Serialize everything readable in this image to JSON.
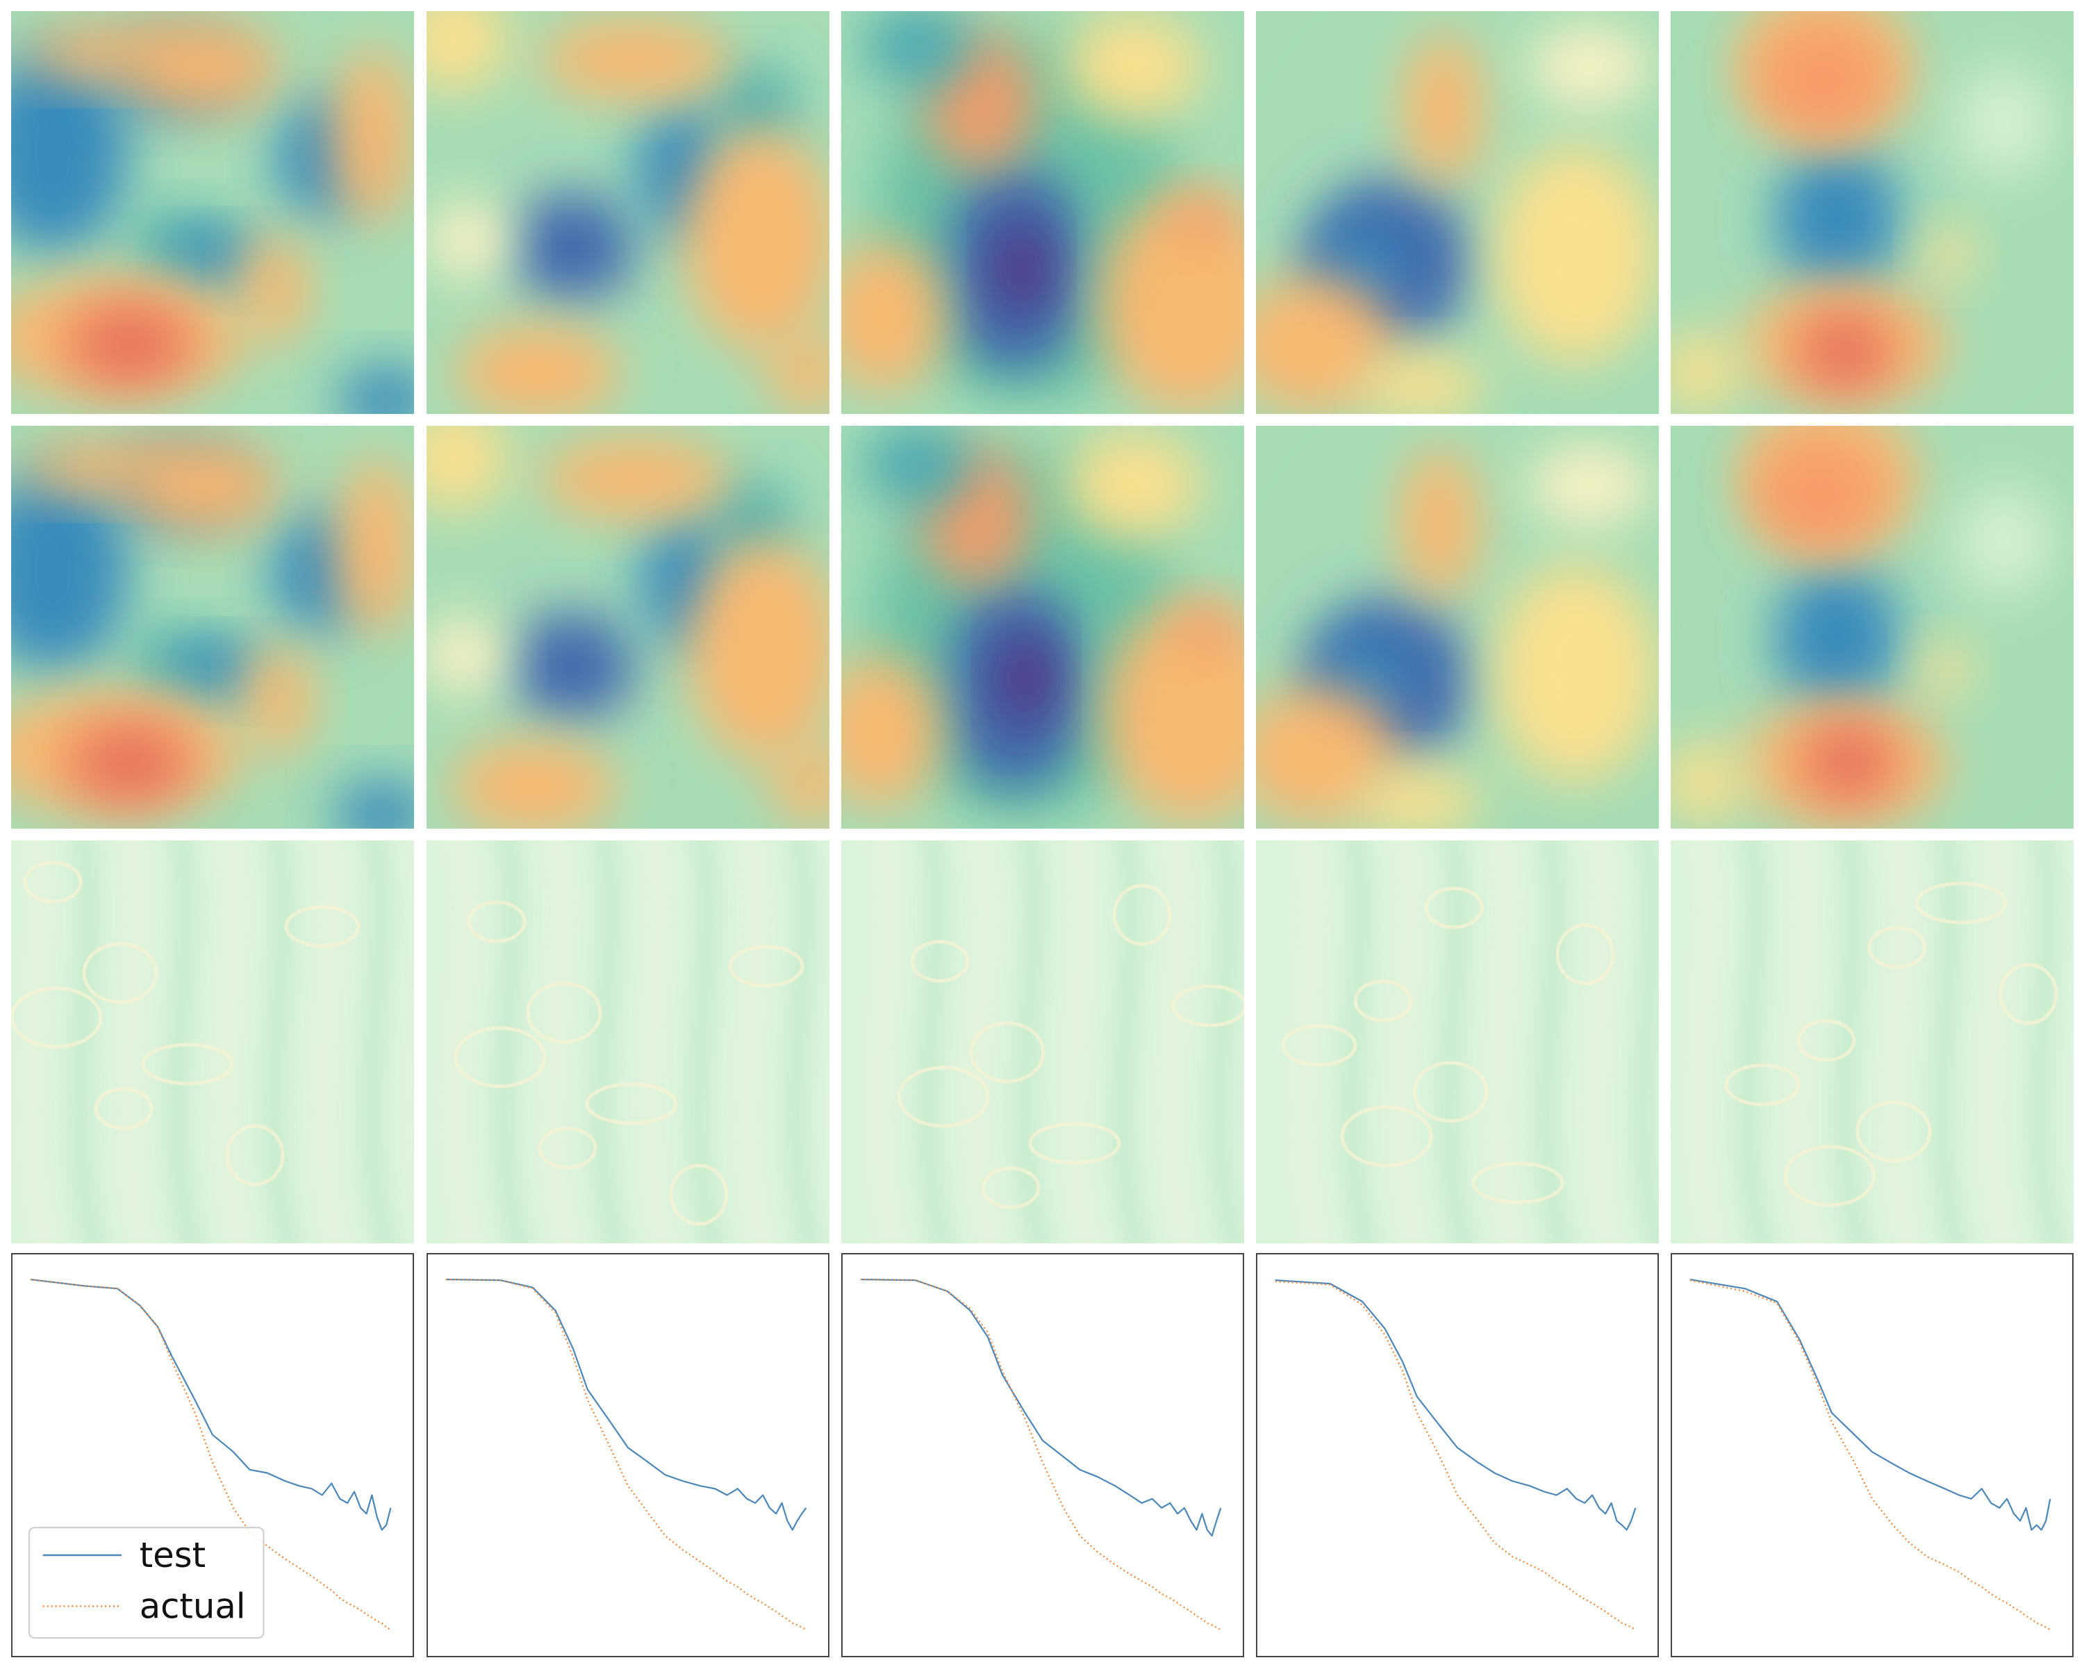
{
  "figure": {
    "rows": [
      "prediction-field",
      "ground-truth-field",
      "error-field",
      "energy-spectrum"
    ],
    "columns": 5,
    "colormap": "Spectral",
    "colors": {
      "test": "#4a86b8",
      "actual": "#f0883b",
      "frame": "#444444"
    }
  },
  "legend": {
    "placement": "lower-left",
    "entries": [
      {
        "label": "test",
        "style": "solid",
        "color": "#4a86b8"
      },
      {
        "label": "actual",
        "style": "dotted",
        "color": "#f0883b"
      }
    ]
  },
  "chart_data": {
    "type": "line",
    "xscale": "log",
    "yscale": "log",
    "axes_ticks": false,
    "xlim": [
      1,
      100
    ],
    "ylim": [
      1e-05,
      1
    ],
    "series_names": [
      "test",
      "actual"
    ],
    "panels": [
      {
        "test": [
          [
            1,
            0.8
          ],
          [
            2,
            0.65
          ],
          [
            3,
            0.6
          ],
          [
            4,
            0.35
          ],
          [
            5,
            0.18
          ],
          [
            6,
            0.07
          ],
          [
            8,
            0.018
          ],
          [
            10,
            0.006
          ],
          [
            13,
            0.0035
          ],
          [
            16,
            0.002
          ],
          [
            20,
            0.0018
          ],
          [
            25,
            0.0014
          ],
          [
            30,
            0.0012
          ],
          [
            35,
            0.0011
          ],
          [
            40,
            0.0009
          ],
          [
            45,
            0.0013
          ],
          [
            50,
            0.0008
          ],
          [
            55,
            0.0007
          ],
          [
            60,
            0.001
          ],
          [
            65,
            0.0006
          ],
          [
            70,
            0.0005
          ],
          [
            75,
            0.0009
          ],
          [
            80,
            0.00045
          ],
          [
            85,
            0.0003
          ],
          [
            90,
            0.00035
          ],
          [
            95,
            0.0006
          ]
        ],
        "actual": [
          [
            1,
            0.8
          ],
          [
            2,
            0.65
          ],
          [
            3,
            0.6
          ],
          [
            4,
            0.35
          ],
          [
            5,
            0.18
          ],
          [
            6,
            0.06
          ],
          [
            8,
            0.012
          ],
          [
            10,
            0.0025
          ],
          [
            13,
            0.0006
          ],
          [
            16,
            0.00028
          ],
          [
            20,
            0.00018
          ],
          [
            25,
            0.00012
          ],
          [
            30,
            9e-05
          ],
          [
            35,
            7e-05
          ],
          [
            40,
            5.5e-05
          ],
          [
            45,
            4.5e-05
          ],
          [
            50,
            3.5e-05
          ],
          [
            55,
            3e-05
          ],
          [
            60,
            2.7e-05
          ],
          [
            65,
            2.4e-05
          ],
          [
            70,
            2.1e-05
          ],
          [
            75,
            1.9e-05
          ],
          [
            80,
            1.7e-05
          ],
          [
            85,
            1.6e-05
          ],
          [
            90,
            1.4e-05
          ],
          [
            95,
            1.3e-05
          ]
        ]
      },
      {
        "test": [
          [
            1,
            0.8
          ],
          [
            2,
            0.78
          ],
          [
            3,
            0.62
          ],
          [
            4,
            0.3
          ],
          [
            5,
            0.09
          ],
          [
            6,
            0.025
          ],
          [
            8,
            0.009
          ],
          [
            10,
            0.004
          ],
          [
            13,
            0.0025
          ],
          [
            16,
            0.0017
          ],
          [
            20,
            0.0014
          ],
          [
            25,
            0.0012
          ],
          [
            30,
            0.0011
          ],
          [
            35,
            0.0009
          ],
          [
            40,
            0.0011
          ],
          [
            45,
            0.0008
          ],
          [
            50,
            0.0007
          ],
          [
            55,
            0.0009
          ],
          [
            60,
            0.0006
          ],
          [
            65,
            0.0005
          ],
          [
            70,
            0.0007
          ],
          [
            75,
            0.0004
          ],
          [
            80,
            0.0003
          ],
          [
            85,
            0.0004
          ],
          [
            90,
            0.0005
          ],
          [
            95,
            0.0006
          ]
        ],
        "actual": [
          [
            1,
            0.8
          ],
          [
            2,
            0.78
          ],
          [
            3,
            0.6
          ],
          [
            4,
            0.28
          ],
          [
            5,
            0.07
          ],
          [
            6,
            0.018
          ],
          [
            8,
            0.004
          ],
          [
            10,
            0.0012
          ],
          [
            13,
            0.0005
          ],
          [
            16,
            0.00025
          ],
          [
            20,
            0.00016
          ],
          [
            25,
            0.00011
          ],
          [
            30,
            8e-05
          ],
          [
            35,
            6e-05
          ],
          [
            40,
            5e-05
          ],
          [
            45,
            4e-05
          ],
          [
            50,
            3.4e-05
          ],
          [
            55,
            3e-05
          ],
          [
            60,
            2.6e-05
          ],
          [
            65,
            2.3e-05
          ],
          [
            70,
            2e-05
          ],
          [
            75,
            1.8e-05
          ],
          [
            80,
            1.6e-05
          ],
          [
            85,
            1.5e-05
          ],
          [
            90,
            1.4e-05
          ],
          [
            95,
            1.3e-05
          ]
        ]
      },
      {
        "test": [
          [
            1,
            0.8
          ],
          [
            2,
            0.78
          ],
          [
            3,
            0.55
          ],
          [
            4,
            0.3
          ],
          [
            5,
            0.13
          ],
          [
            6,
            0.04
          ],
          [
            8,
            0.012
          ],
          [
            10,
            0.005
          ],
          [
            13,
            0.003
          ],
          [
            16,
            0.002
          ],
          [
            20,
            0.0016
          ],
          [
            25,
            0.0012
          ],
          [
            30,
            0.0009
          ],
          [
            35,
            0.0007
          ],
          [
            40,
            0.0008
          ],
          [
            45,
            0.0006
          ],
          [
            50,
            0.0007
          ],
          [
            55,
            0.0005
          ],
          [
            60,
            0.0006
          ],
          [
            65,
            0.0004
          ],
          [
            70,
            0.0003
          ],
          [
            75,
            0.0005
          ],
          [
            80,
            0.0003
          ],
          [
            85,
            0.00025
          ],
          [
            90,
            0.0004
          ],
          [
            95,
            0.0006
          ]
        ],
        "actual": [
          [
            1,
            0.8
          ],
          [
            2,
            0.78
          ],
          [
            3,
            0.55
          ],
          [
            4,
            0.32
          ],
          [
            5,
            0.15
          ],
          [
            6,
            0.045
          ],
          [
            8,
            0.01
          ],
          [
            10,
            0.0025
          ],
          [
            13,
            0.0006
          ],
          [
            16,
            0.00025
          ],
          [
            20,
            0.00015
          ],
          [
            25,
            0.0001
          ],
          [
            30,
            7.5e-05
          ],
          [
            35,
            6e-05
          ],
          [
            40,
            5e-05
          ],
          [
            45,
            4e-05
          ],
          [
            50,
            3.5e-05
          ],
          [
            55,
            3e-05
          ],
          [
            60,
            2.6e-05
          ],
          [
            65,
            2.3e-05
          ],
          [
            70,
            2e-05
          ],
          [
            75,
            1.8e-05
          ],
          [
            80,
            1.6e-05
          ],
          [
            85,
            1.5e-05
          ],
          [
            90,
            1.4e-05
          ],
          [
            95,
            1.3e-05
          ]
        ]
      },
      {
        "test": [
          [
            1,
            0.78
          ],
          [
            2,
            0.7
          ],
          [
            3,
            0.4
          ],
          [
            4,
            0.17
          ],
          [
            5,
            0.06
          ],
          [
            6,
            0.02
          ],
          [
            8,
            0.008
          ],
          [
            10,
            0.004
          ],
          [
            13,
            0.0025
          ],
          [
            16,
            0.0018
          ],
          [
            20,
            0.0014
          ],
          [
            25,
            0.0012
          ],
          [
            30,
            0.001
          ],
          [
            35,
            0.0009
          ],
          [
            40,
            0.0011
          ],
          [
            45,
            0.0008
          ],
          [
            50,
            0.0007
          ],
          [
            55,
            0.0009
          ],
          [
            60,
            0.0006
          ],
          [
            65,
            0.0005
          ],
          [
            70,
            0.0007
          ],
          [
            75,
            0.0004
          ],
          [
            80,
            0.00035
          ],
          [
            85,
            0.0003
          ],
          [
            90,
            0.0004
          ],
          [
            95,
            0.0006
          ]
        ],
        "actual": [
          [
            1,
            0.75
          ],
          [
            2,
            0.68
          ],
          [
            3,
            0.36
          ],
          [
            4,
            0.14
          ],
          [
            5,
            0.045
          ],
          [
            6,
            0.012
          ],
          [
            8,
            0.003
          ],
          [
            10,
            0.0009
          ],
          [
            13,
            0.0004
          ],
          [
            16,
            0.0002
          ],
          [
            20,
            0.00013
          ],
          [
            25,
            0.0001
          ],
          [
            30,
            8e-05
          ],
          [
            35,
            6e-05
          ],
          [
            40,
            5e-05
          ],
          [
            45,
            4e-05
          ],
          [
            50,
            3.4e-05
          ],
          [
            55,
            3e-05
          ],
          [
            60,
            2.6e-05
          ],
          [
            65,
            2.3e-05
          ],
          [
            70,
            2e-05
          ],
          [
            75,
            1.8e-05
          ],
          [
            80,
            1.6e-05
          ],
          [
            85,
            1.5e-05
          ],
          [
            90,
            1.4e-05
          ],
          [
            95,
            1.3e-05
          ]
        ]
      },
      {
        "test": [
          [
            1,
            0.8
          ],
          [
            2,
            0.6
          ],
          [
            3,
            0.4
          ],
          [
            4,
            0.12
          ],
          [
            5,
            0.035
          ],
          [
            6,
            0.012
          ],
          [
            8,
            0.006
          ],
          [
            10,
            0.0035
          ],
          [
            13,
            0.0024
          ],
          [
            16,
            0.0018
          ],
          [
            20,
            0.0014
          ],
          [
            25,
            0.0011
          ],
          [
            30,
            0.0009
          ],
          [
            35,
            0.0008
          ],
          [
            40,
            0.0011
          ],
          [
            45,
            0.0007
          ],
          [
            50,
            0.0006
          ],
          [
            55,
            0.0008
          ],
          [
            60,
            0.0005
          ],
          [
            65,
            0.0004
          ],
          [
            70,
            0.0006
          ],
          [
            75,
            0.0003
          ],
          [
            80,
            0.00035
          ],
          [
            85,
            0.0003
          ],
          [
            90,
            0.0004
          ],
          [
            95,
            0.0008
          ]
        ],
        "actual": [
          [
            1,
            0.78
          ],
          [
            2,
            0.55
          ],
          [
            3,
            0.38
          ],
          [
            4,
            0.11
          ],
          [
            5,
            0.03
          ],
          [
            6,
            0.009
          ],
          [
            8,
            0.0025
          ],
          [
            10,
            0.0008
          ],
          [
            13,
            0.00035
          ],
          [
            16,
            0.0002
          ],
          [
            20,
            0.00013
          ],
          [
            25,
            0.0001
          ],
          [
            30,
            8e-05
          ],
          [
            35,
            6e-05
          ],
          [
            40,
            5e-05
          ],
          [
            45,
            4e-05
          ],
          [
            50,
            3.4e-05
          ],
          [
            55,
            3e-05
          ],
          [
            60,
            2.6e-05
          ],
          [
            65,
            2.3e-05
          ],
          [
            70,
            2e-05
          ],
          [
            75,
            1.8e-05
          ],
          [
            80,
            1.6e-05
          ],
          [
            85,
            1.5e-05
          ],
          [
            90,
            1.4e-05
          ],
          [
            95,
            1.3e-05
          ]
        ]
      }
    ]
  }
}
